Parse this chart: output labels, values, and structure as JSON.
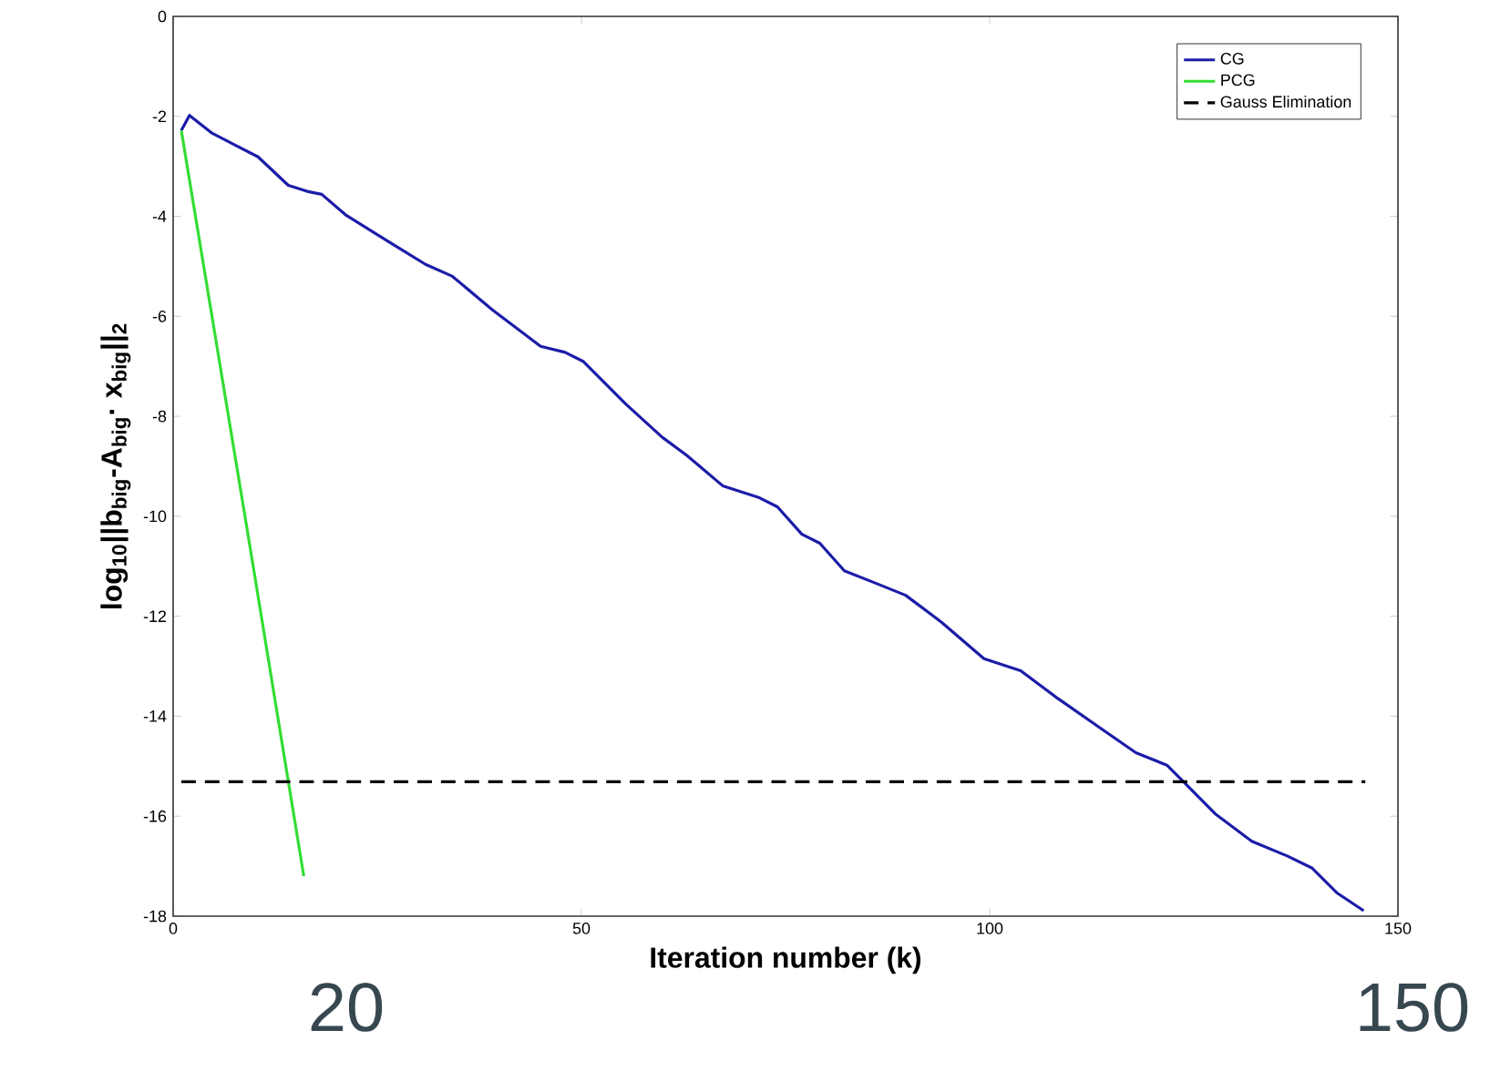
{
  "chart_data": {
    "type": "line",
    "xlabel": "Iteration number (k)",
    "ylabel": "log$_{10}$||b$_{big}$-A$_{big}$· x$_{big}$||$_{2}$",
    "xlim": [
      0,
      150
    ],
    "xticks": [
      0,
      50,
      100,
      150
    ],
    "ylim": [
      -18,
      0
    ],
    "yticks": [
      -18,
      -16,
      -14,
      -12,
      -10,
      -8,
      -6,
      -4,
      -2,
      0
    ],
    "legend": "top right",
    "annotations": [
      "20",
      "150"
    ],
    "series": [
      {
        "name": "CG",
        "color": "#1c1ca8",
        "line_style": "solid",
        "x": [
          1,
          2,
          4.8,
          10.4,
          14.1,
          16.4,
          18.2,
          21.2,
          27.2,
          30.9,
          34.2,
          39.1,
          45,
          48,
          50.2,
          55.4,
          59.9,
          62.9,
          67.3,
          71.8,
          74,
          77,
          79.2,
          82.2,
          85.9,
          89.7,
          94.1,
          99.3,
          103.8,
          108.3,
          114.2,
          117.9,
          121.7,
          123.9,
          127.6,
          132.1,
          136.5,
          139.5,
          142.5,
          145.8
        ],
        "values": [
          -2.28,
          -1.98,
          -2.34,
          -2.81,
          -3.38,
          -3.5,
          -3.56,
          -3.98,
          -4.59,
          -4.96,
          -5.2,
          -5.87,
          -6.6,
          -6.72,
          -6.9,
          -7.75,
          -8.42,
          -8.78,
          -9.39,
          -9.63,
          -9.81,
          -10.36,
          -10.54,
          -11.09,
          -11.33,
          -11.58,
          -12.12,
          -12.85,
          -13.09,
          -13.64,
          -14.31,
          -14.73,
          -14.98,
          -15.34,
          -15.95,
          -16.5,
          -16.8,
          -17.04,
          -17.53,
          -17.89
        ]
      },
      {
        "name": "PCG",
        "color": "#33dd33",
        "line_style": "solid",
        "x": [
          1,
          9.3,
          16
        ],
        "values": [
          -2.28,
          -10.5,
          -17.2
        ]
      },
      {
        "name": "Gauss Elimination",
        "color": "#000000",
        "line_style": "dashed",
        "x": [
          1,
          146
        ],
        "values": [
          -15.31,
          -15.31
        ]
      }
    ]
  }
}
